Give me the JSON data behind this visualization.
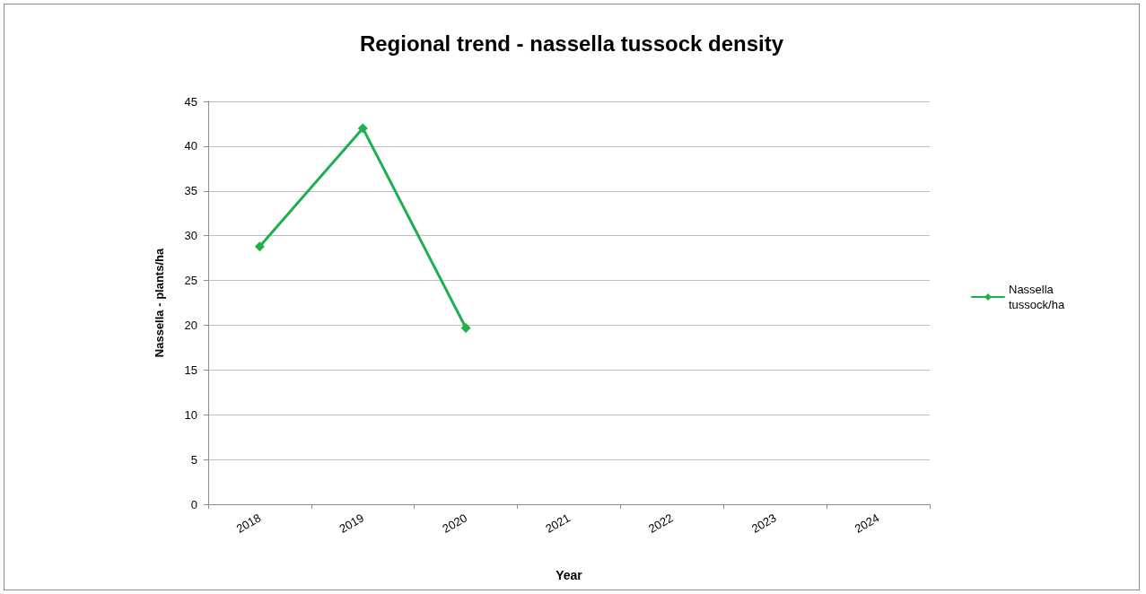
{
  "chart_data": {
    "type": "line",
    "title": "Regional trend - nassella tussock density",
    "xlabel": "Year",
    "ylabel": "Nassella - plants/ha",
    "categories": [
      "2018",
      "2019",
      "2020",
      "2021",
      "2022",
      "2023",
      "2024"
    ],
    "series": [
      {
        "name": "Nassella tussock/ha",
        "color": "#1db04e",
        "values": [
          28.8,
          42,
          19.7,
          null,
          null,
          null,
          null
        ]
      }
    ],
    "ylim": [
      0,
      45
    ],
    "yticks": [
      0,
      5,
      10,
      15,
      20,
      25,
      30,
      35,
      40,
      45
    ],
    "grid": "y",
    "legend": "right",
    "marker": "diamond",
    "line_style": "solid"
  }
}
